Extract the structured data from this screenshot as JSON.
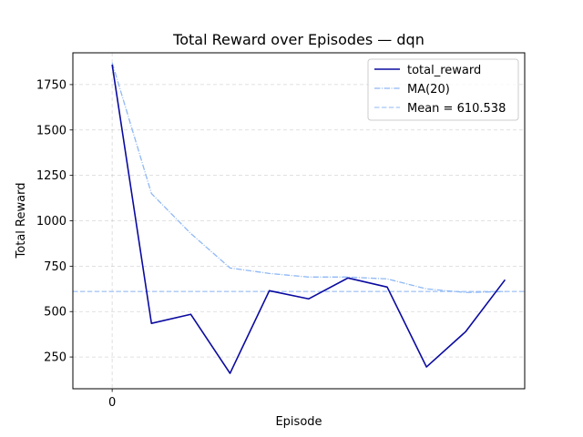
{
  "chart_data": {
    "type": "line",
    "title": "Total Reward over Episodes — dqn",
    "xlabel": "Episode",
    "ylabel": "Total Reward",
    "xlim": [
      -1,
      10.5
    ],
    "ylim": [
      75,
      1925
    ],
    "x_ticks": [
      0
    ],
    "x_tick_labels": [
      "0"
    ],
    "y_ticks": [
      250,
      500,
      750,
      1000,
      1250,
      1500,
      1750
    ],
    "y_tick_labels": [
      "250",
      "500",
      "750",
      "1000",
      "1250",
      "1500",
      "1750"
    ],
    "grid": true,
    "legend_position": "top-right",
    "x": [
      0,
      1,
      2,
      3,
      4,
      5,
      6,
      7,
      8,
      9,
      10
    ],
    "series": [
      {
        "name": "total_reward",
        "style": "solid",
        "color": "#0a0aa0",
        "values": [
          1860,
          435,
          485,
          160,
          615,
          570,
          685,
          635,
          195,
          390,
          675
        ]
      },
      {
        "name": "MA(20)",
        "style": "dashdot",
        "color": "#8fb8f5",
        "values": [
          1870,
          1150,
          930,
          740,
          710,
          690,
          690,
          680,
          625,
          605,
          610
        ]
      },
      {
        "name": "Mean = 610.538",
        "style": "dashed",
        "color": "#a8c8f5",
        "values": [
          610.538,
          610.538,
          610.538,
          610.538,
          610.538,
          610.538,
          610.538,
          610.538,
          610.538,
          610.538,
          610.538
        ]
      }
    ]
  }
}
